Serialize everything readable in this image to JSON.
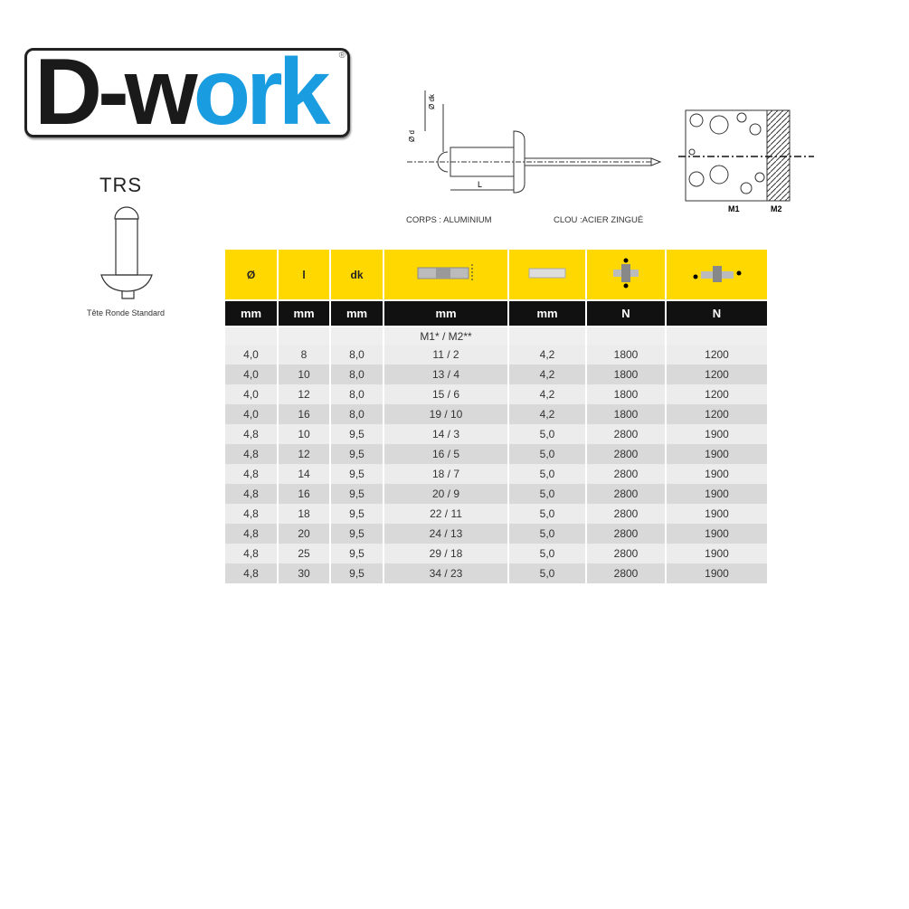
{
  "logo": {
    "text_dark": "D-w",
    "text_blue": "ork",
    "reg": "®",
    "colors": {
      "dark": "#1a1a1a",
      "blue": "#1a9de0"
    }
  },
  "product": {
    "code": "TRS",
    "caption": "Tête Ronde Standard"
  },
  "diagram": {
    "label_dk": "Ø dk",
    "label_d": "Ø d",
    "label_L": "L",
    "body": "CORPS : ALUMINIUM",
    "nail": "CLOU :ACIER ZINGUÉ",
    "m1": "M1",
    "m2": "M2"
  },
  "table": {
    "header": [
      "Ø",
      "l",
      "dk",
      "",
      "",
      "",
      ""
    ],
    "header_icons": [
      "",
      "",
      "",
      "grip-range-icon",
      "drill-hole-icon",
      "tensile-force-icon",
      "shear-force-icon"
    ],
    "units": [
      "mm",
      "mm",
      "mm",
      "mm",
      "mm",
      "N",
      "N"
    ],
    "subheader": [
      "",
      "",
      "",
      "M1* / M2**",
      "",
      "",
      ""
    ],
    "rows": [
      [
        "4,0",
        "8",
        "8,0",
        "11 / 2",
        "4,2",
        "1800",
        "1200"
      ],
      [
        "4,0",
        "10",
        "8,0",
        "13 / 4",
        "4,2",
        "1800",
        "1200"
      ],
      [
        "4,0",
        "12",
        "8,0",
        "15 / 6",
        "4,2",
        "1800",
        "1200"
      ],
      [
        "4,0",
        "16",
        "8,0",
        "19 / 10",
        "4,2",
        "1800",
        "1200"
      ],
      [
        "4,8",
        "10",
        "9,5",
        "14 / 3",
        "5,0",
        "2800",
        "1900"
      ],
      [
        "4,8",
        "12",
        "9,5",
        "16 / 5",
        "5,0",
        "2800",
        "1900"
      ],
      [
        "4,8",
        "14",
        "9,5",
        "18 / 7",
        "5,0",
        "2800",
        "1900"
      ],
      [
        "4,8",
        "16",
        "9,5",
        "20 / 9",
        "5,0",
        "2800",
        "1900"
      ],
      [
        "4,8",
        "18",
        "9,5",
        "22 / 11",
        "5,0",
        "2800",
        "1900"
      ],
      [
        "4,8",
        "20",
        "9,5",
        "24 / 13",
        "5,0",
        "2800",
        "1900"
      ],
      [
        "4,8",
        "25",
        "9,5",
        "29 / 18",
        "5,0",
        "2800",
        "1900"
      ],
      [
        "4,8",
        "30",
        "9,5",
        "34 / 23",
        "5,0",
        "2800",
        "1900"
      ]
    ],
    "colors": {
      "header": "#ffd800",
      "units": "#111111"
    }
  }
}
